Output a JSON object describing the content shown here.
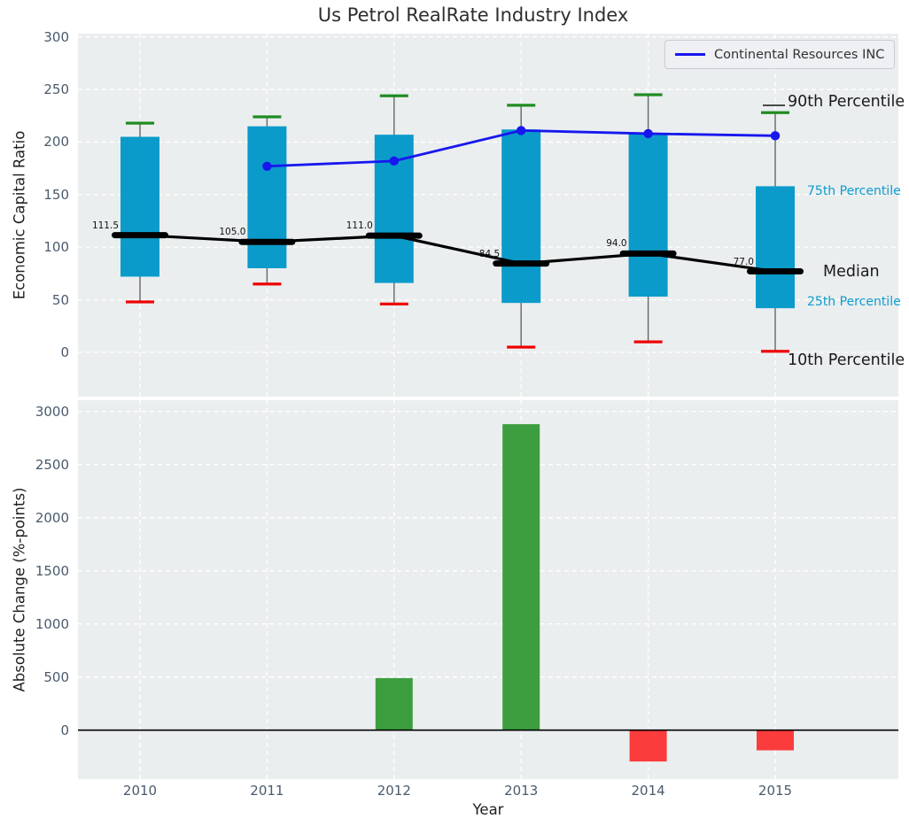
{
  "title": "Us Petrol RealRate Industry Index",
  "legend": {
    "label": "Continental Resources INC"
  },
  "annotations": {
    "p90": "90th Percentile",
    "p75": "75th Percentile",
    "median": "Median",
    "p25": "25th Percentile",
    "p10": "10th Percentile"
  },
  "colors": {
    "panel_bg": "#eaeeef",
    "grid": "#ffffff",
    "box": "#0b9bcb",
    "whisker": "#666666",
    "cap_high": "#1f8b1f",
    "cap_low": "#ee0000",
    "median_line": "#000000",
    "series_line": "#1717ee",
    "bar_positive": "#3c9e3f",
    "bar_negative": "#fa3c3c",
    "tick_label": "#4a5a6d",
    "annotation_cyan": "#0d9bce"
  },
  "chart_data": [
    {
      "type": "box-percentile+line",
      "title": "Us Petrol RealRate Industry Index",
      "ylabel": "Economic Capital Ratio",
      "xlabel": "Year",
      "categories": [
        "2010",
        "2011",
        "2012",
        "2013",
        "2014",
        "2015"
      ],
      "yticks": [
        0,
        50,
        100,
        150,
        200,
        250,
        300
      ],
      "ylim": [
        -42,
        302
      ],
      "grid": true,
      "percentiles": {
        "p90": [
          218,
          224,
          244,
          235,
          245,
          228
        ],
        "p75": [
          205,
          215,
          207,
          212,
          208,
          158
        ],
        "median": [
          111.5,
          105.0,
          111.0,
          84.5,
          94.0,
          77.0
        ],
        "p25": [
          72,
          80,
          66,
          47,
          53,
          42
        ],
        "p10": [
          48,
          65,
          46,
          5,
          10,
          1
        ]
      },
      "median_labels": [
        "111.5",
        "105.0",
        "111.0",
        "84.5",
        "94.0",
        "77.0"
      ],
      "series": [
        {
          "name": "Continental Resources INC",
          "categories": [
            "2011",
            "2012",
            "2013",
            "2014",
            "2015"
          ],
          "values": [
            177,
            182,
            211,
            208,
            206
          ]
        }
      ],
      "legend_position": "upper right"
    },
    {
      "type": "bar",
      "ylabel": "Absolute Change (%-points)",
      "xlabel": "Year",
      "categories": [
        "2010",
        "2011",
        "2012",
        "2013",
        "2014",
        "2015"
      ],
      "values": [
        null,
        null,
        490,
        2880,
        -295,
        -190
      ],
      "yticks": [
        0,
        500,
        1000,
        1500,
        2000,
        2500,
        3000
      ],
      "ylim": [
        -460,
        3120
      ],
      "grid": true
    }
  ]
}
